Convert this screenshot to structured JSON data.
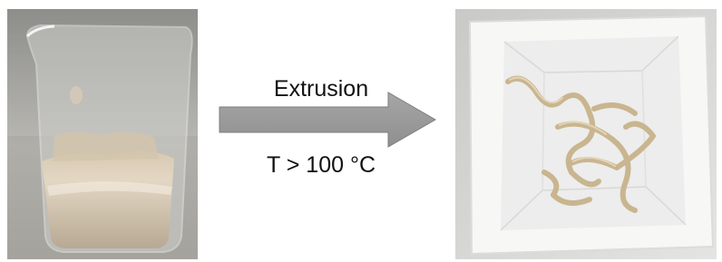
{
  "process": {
    "label": "Extrusion",
    "condition": "T > 100 °C"
  }
}
